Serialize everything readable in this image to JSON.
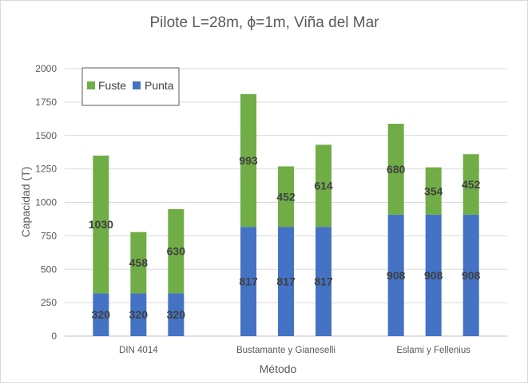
{
  "chart_data": {
    "type": "bar",
    "stacked": true,
    "title": "Pilote L=28m, ϕ=1m, Viña del Mar",
    "xlabel": "Método",
    "ylabel": "Capacidad (T)",
    "ylim": [
      0,
      2000
    ],
    "yticks": [
      0,
      250,
      500,
      750,
      1000,
      1250,
      1500,
      1750,
      2000
    ],
    "grid": true,
    "legend_position": "top-left",
    "groups": [
      "DIN 4014",
      "Bustamante y Gianeselli",
      "Eslami y Fellenius"
    ],
    "bars_per_group": 3,
    "series": [
      {
        "name": "Punta",
        "color": "#4472c4",
        "values": [
          320,
          320,
          320,
          817,
          817,
          817,
          908,
          908,
          908
        ]
      },
      {
        "name": "Fuste",
        "color": "#70ad47",
        "values": [
          1030,
          458,
          630,
          993,
          452,
          614,
          680,
          354,
          452
        ]
      }
    ]
  }
}
